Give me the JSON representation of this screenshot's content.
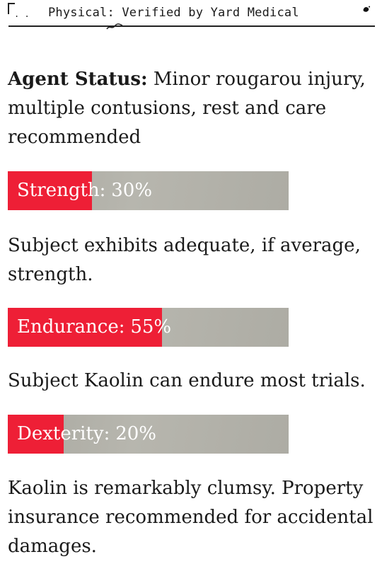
{
  "header": {
    "corner_marks": ". .",
    "title": "Physical: Verified by Yard Medical"
  },
  "agent_status": {
    "label": "Agent Status:",
    "value": "Minor rougarou injury, multiple contusions, rest and care recommended"
  },
  "stats": [
    {
      "name": "Strength",
      "value": 30,
      "value_label": "30%",
      "description": "Subject exhibits adequate, if average, strength."
    },
    {
      "name": "Endurance",
      "value": 55,
      "value_label": "55%",
      "description": "Subject Kaolin can endure most trials."
    },
    {
      "name": "Dexterity",
      "value": 20,
      "value_label": "20%",
      "description": "Kaolin is remarkably clumsy. Property insurance recommended for accidental damages."
    }
  ],
  "colors": {
    "bar_fill": "#ee1f36",
    "bar_track": "#b0afa7",
    "text": "#1a1a1a"
  }
}
